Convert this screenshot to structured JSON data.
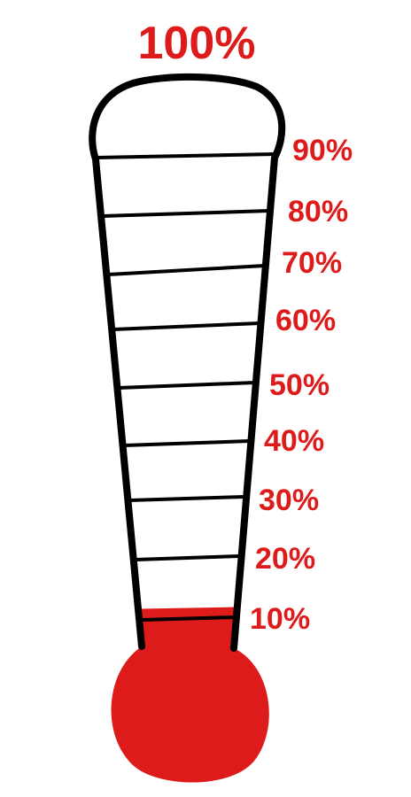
{
  "thermometer": {
    "top_label": "100%",
    "fill_level_percent": 10,
    "fill_color": "#dd1b1b",
    "outline_color": "#000000",
    "label_color": "#dd1b1b",
    "ticks": [
      {
        "label": "90%"
      },
      {
        "label": "80%"
      },
      {
        "label": "70%"
      },
      {
        "label": "60%"
      },
      {
        "label": "50%"
      },
      {
        "label": "40%"
      },
      {
        "label": "30%"
      },
      {
        "label": "20%"
      },
      {
        "label": "10%"
      }
    ]
  }
}
